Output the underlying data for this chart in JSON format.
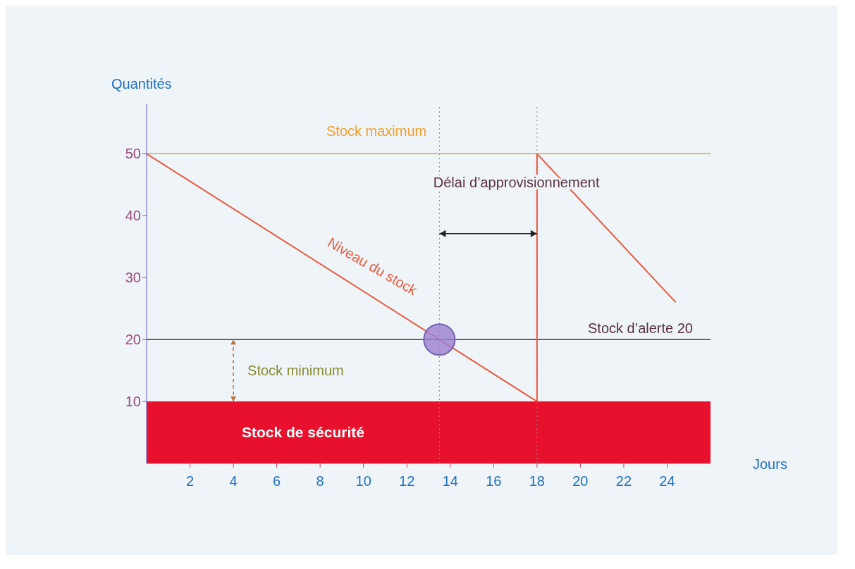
{
  "chart_data": {
    "type": "line",
    "xlabel": "Jours",
    "ylabel": "Quantités",
    "x": [
      0,
      18,
      18,
      24.4
    ],
    "series": [
      {
        "name": "Niveau du stock",
        "color": "#e8593c",
        "values": [
          50,
          10,
          50,
          26
        ]
      }
    ],
    "xlim": [
      0,
      26
    ],
    "xticks": [
      2,
      4,
      6,
      8,
      10,
      12,
      14,
      16,
      18,
      20,
      22,
      24
    ],
    "ylim": [
      0,
      58
    ],
    "yticks": [
      10,
      20,
      30,
      40,
      50
    ],
    "ref_lines": [
      {
        "axis": "y",
        "value": 50,
        "label": "Stock maximum",
        "color": "#f0a030"
      },
      {
        "axis": "y",
        "value": 20,
        "label": "Stock d’alerte  20",
        "color": "#5a3040"
      },
      {
        "axis": "x",
        "value": 13.5,
        "color": "#888888",
        "line_style": "dotted"
      },
      {
        "axis": "x",
        "value": 18,
        "color": "#888888",
        "line_style": "dotted"
      }
    ],
    "bands": [
      {
        "axis": "y",
        "from": 0,
        "to": 10,
        "label": "Stock de sécurité",
        "color": "#e8112d"
      }
    ],
    "annotations": [
      "Délai d’approvisionnement",
      "Stock minimum"
    ],
    "grid": false,
    "legend": false
  }
}
